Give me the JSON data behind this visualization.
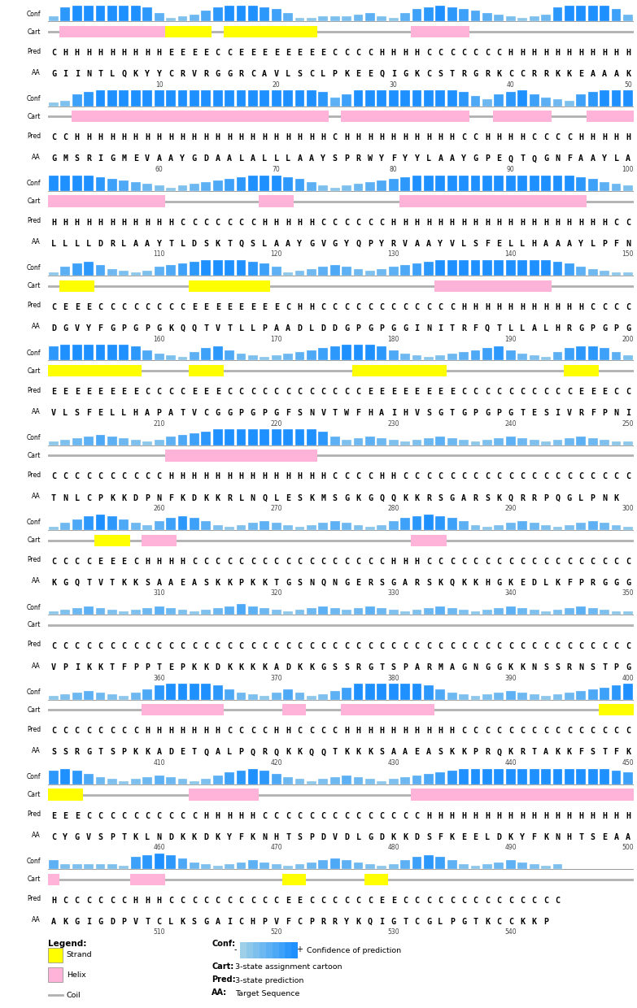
{
  "aa_seqs": [
    "GIINTLQKYYCRVR GGRCAVLSCLPKEEQI GKCSTRGRKCCRRK KEAAAK",
    "GMSRIGMEVAAYGDAALALLL AAYSPRWYFYYLAAY GPEQTQGNFAAYLA",
    "LLLLDRLAAY TLDSKTQSLAAY GVGYQPYRVAAY VLSFELLHAAAYLPFN",
    "DGVYFGPGPGKQQTVTLLPAADLDDGPGPGGI NITRFQTLLALHRGPGPG",
    "VLSFELLHAPATVCGGPGPGFSNVTWFHAI HVSGTGPGPGTESI VRFPNI",
    "TNLCPKKDPNFKDKKRLNQLESKMSGKGQQKKRSGARSKQRRPQGLPNK",
    "KGQTVTK KSAAE ASKKPKKTGSNQNGERSGARSKQKKHGKEDLKFPRGGG",
    "VPIKKTFPPTEPKKDKKKKADKKGSSRGTSPARMA GNGGKKNSSRNSTPG",
    "SSRGTSPKKADETQALPQRQKKQQTKKKSAAEASKKPRQKRTAKKFSTFK",
    "CYGVSPTKLNDKKDKYFKNHTSPDVDLGDKKDSFKEELDKYFKNHTSEAA",
    "AKGIGDPVTCLKSGAICHPVFCPRRYKQI GTCGLPGTKCCKKP"
  ],
  "pred_seqs": [
    "CHHHHHHHHHEEEECCEEEEEEEECCCCHHHHCCCCCCCHHHHHHHHHHHHHC",
    "CCHHHHHHHHHHHHHHHHHHHHHHCHHHHHHHHHHCCHHHHCCCCHHHHHHH",
    "HHHHHHHHHHHCCCCCCCHHHHHCCCCCCHHHHHHHHHHHHHHHHHHHCCCCC",
    "CEEECCCCCCCCEEEEEEEECHHCCCCCCCCCCCCHHHHHHHHHHHCCCCCCC",
    "EEEEEEEECCCCEEECCCCCCCCCCCCEEEEEEEECCCCCCCCCCEEECCCC",
    "CCCCCCCCCCHHHHHHHHHHHHHHCCCCHHCCCCCCCCCCCCCCCCCCCCCC",
    "CCCCEEECHHHHCCCCCCCCCCCCCCCCCHHH CCCCCCCCCCCCCCCCCCCC",
    "CCCCCCCCCCCCCCCCCCCCCCCCCCCCCCCCCCCCCCCCCCCCCCCCCCCC",
    "CCCCCCCCHHHHHHHCCCCHHCCCCHHHHHHHHHHCCCCCCCCCCCCCCCEEE",
    "EEECCCCCCCCCCHHHHHCCCCCCCCCCCCCCHHHHHHHHHHHHHHHHHHHHH",
    "HCCCCCCHHHCCCCCCCCCCEECCCCCCEECCCCCCCCCCCCCCCC"
  ],
  "conf_seqs": [
    [
      3,
      8,
      9,
      9,
      9,
      9,
      9,
      9,
      8,
      5,
      2,
      3,
      4,
      6,
      8,
      9,
      9,
      9,
      8,
      7,
      5,
      2,
      2,
      3,
      3,
      3,
      4,
      5,
      3,
      2,
      5,
      7,
      8,
      9,
      8,
      7,
      6,
      5,
      4,
      3,
      2,
      3,
      4,
      8,
      9,
      9,
      9,
      9,
      7,
      4
    ],
    [
      2,
      3,
      7,
      8,
      9,
      9,
      9,
      9,
      9,
      9,
      9,
      9,
      9,
      9,
      9,
      9,
      9,
      9,
      9,
      9,
      9,
      9,
      9,
      8,
      5,
      7,
      9,
      9,
      9,
      9,
      9,
      9,
      9,
      9,
      9,
      8,
      6,
      4,
      7,
      8,
      9,
      7,
      5,
      4,
      3,
      7,
      8,
      9,
      9,
      9
    ],
    [
      9,
      9,
      9,
      9,
      8,
      7,
      6,
      5,
      4,
      3,
      2,
      3,
      4,
      5,
      6,
      7,
      8,
      9,
      9,
      9,
      8,
      7,
      5,
      3,
      2,
      3,
      4,
      5,
      6,
      7,
      8,
      9,
      9,
      9,
      9,
      9,
      9,
      9,
      9,
      9,
      9,
      9,
      9,
      9,
      9,
      8,
      7,
      5,
      4,
      3
    ],
    [
      2,
      5,
      7,
      8,
      6,
      4,
      3,
      2,
      3,
      5,
      6,
      7,
      8,
      9,
      9,
      9,
      9,
      8,
      7,
      5,
      2,
      3,
      4,
      5,
      6,
      5,
      4,
      3,
      4,
      5,
      6,
      7,
      8,
      9,
      9,
      9,
      9,
      9,
      9,
      9,
      9,
      9,
      9,
      8,
      7,
      5,
      4,
      3,
      2,
      2
    ],
    [
      8,
      9,
      9,
      9,
      9,
      9,
      9,
      8,
      6,
      4,
      3,
      2,
      5,
      7,
      8,
      6,
      4,
      3,
      2,
      3,
      4,
      5,
      6,
      7,
      8,
      9,
      9,
      9,
      8,
      6,
      4,
      3,
      2,
      3,
      4,
      5,
      6,
      7,
      8,
      6,
      4,
      3,
      2,
      5,
      7,
      8,
      8,
      7,
      5,
      3
    ],
    [
      2,
      3,
      4,
      5,
      6,
      5,
      4,
      3,
      2,
      3,
      5,
      6,
      7,
      8,
      9,
      9,
      9,
      9,
      9,
      9,
      9,
      9,
      9,
      8,
      5,
      3,
      4,
      5,
      4,
      3,
      2,
      3,
      4,
      5,
      4,
      3,
      2,
      3,
      4,
      5,
      4,
      3,
      2,
      3,
      4,
      5,
      4,
      3,
      2,
      2
    ],
    [
      2,
      4,
      6,
      8,
      9,
      8,
      6,
      4,
      3,
      5,
      7,
      8,
      7,
      5,
      3,
      2,
      3,
      4,
      5,
      4,
      3,
      2,
      3,
      4,
      5,
      4,
      3,
      2,
      3,
      5,
      7,
      8,
      9,
      8,
      7,
      5,
      3,
      2,
      3,
      4,
      5,
      4,
      3,
      2,
      3,
      4,
      5,
      4,
      3,
      2
    ],
    [
      2,
      3,
      4,
      5,
      4,
      3,
      2,
      3,
      4,
      5,
      4,
      3,
      2,
      3,
      4,
      5,
      6,
      5,
      4,
      3,
      2,
      3,
      4,
      5,
      4,
      3,
      4,
      5,
      4,
      3,
      2,
      3,
      4,
      5,
      4,
      3,
      2,
      3,
      4,
      5,
      4,
      3,
      2,
      3,
      4,
      5,
      4,
      3,
      2,
      2
    ],
    [
      2,
      3,
      4,
      5,
      4,
      3,
      2,
      4,
      6,
      8,
      9,
      9,
      9,
      9,
      8,
      6,
      4,
      3,
      2,
      4,
      6,
      4,
      2,
      3,
      5,
      7,
      9,
      9,
      9,
      9,
      9,
      9,
      8,
      6,
      4,
      3,
      2,
      3,
      4,
      5,
      4,
      3,
      2,
      3,
      4,
      5,
      6,
      7,
      8,
      9
    ],
    [
      8,
      9,
      8,
      6,
      4,
      3,
      2,
      3,
      4,
      5,
      4,
      3,
      2,
      3,
      5,
      7,
      8,
      9,
      8,
      6,
      4,
      3,
      2,
      3,
      4,
      5,
      4,
      3,
      2,
      3,
      4,
      5,
      6,
      7,
      8,
      9,
      9,
      9,
      9,
      9,
      9,
      9,
      9,
      9,
      9,
      9,
      9,
      9,
      8,
      7
    ],
    [
      5,
      3,
      3,
      3,
      3,
      3,
      2,
      7,
      8,
      9,
      8,
      6,
      4,
      3,
      2,
      3,
      4,
      5,
      4,
      3,
      2,
      3,
      4,
      5,
      6,
      5,
      4,
      3,
      2,
      3,
      5,
      7,
      8,
      7,
      5,
      3,
      2,
      3,
      4,
      5,
      4,
      3,
      2,
      3
    ]
  ],
  "cart_seqs": [
    [
      [
        "H",
        2,
        10
      ],
      [
        "E",
        11,
        14
      ],
      [
        "E",
        16,
        23
      ],
      [
        "H",
        32,
        36
      ]
    ],
    [
      [
        "H",
        3,
        24
      ],
      [
        "H",
        26,
        36
      ],
      [
        "H",
        39,
        43
      ],
      [
        "H",
        47,
        50
      ]
    ],
    [
      [
        "H",
        1,
        10
      ],
      [
        "H",
        19,
        21
      ],
      [
        "H",
        31,
        46
      ]
    ],
    [
      [
        "E",
        2,
        4
      ],
      [
        "E",
        13,
        19
      ],
      [
        "H",
        34,
        43
      ]
    ],
    [
      [
        "E",
        1,
        8
      ],
      [
        "E",
        13,
        15
      ],
      [
        "E",
        27,
        34
      ],
      [
        "E",
        45,
        47
      ]
    ],
    [
      [
        "H",
        11,
        23
      ]
    ],
    [
      [
        "E",
        5,
        7
      ],
      [
        "H",
        9,
        11
      ],
      [
        "H",
        32,
        34
      ]
    ],
    [],
    [
      [
        "H",
        9,
        15
      ],
      [
        "H",
        21,
        22
      ],
      [
        "H",
        26,
        33
      ],
      [
        "E",
        48,
        50
      ]
    ],
    [
      [
        "E",
        1,
        3
      ],
      [
        "H",
        13,
        18
      ],
      [
        "H",
        32,
        50
      ]
    ],
    [
      [
        "H",
        1,
        1
      ],
      [
        "H",
        8,
        10
      ],
      [
        "E",
        21,
        22
      ],
      [
        "E",
        28,
        29
      ]
    ]
  ],
  "starts": [
    1,
    51,
    101,
    151,
    201,
    251,
    301,
    351,
    401,
    451,
    501
  ],
  "helix_color": "#FFB3D9",
  "strand_color": "#FFFF00",
  "coil_color": "#B0B0B0",
  "conf_low_color": "#ADD8E6",
  "conf_high_color": "#1E8FFF"
}
